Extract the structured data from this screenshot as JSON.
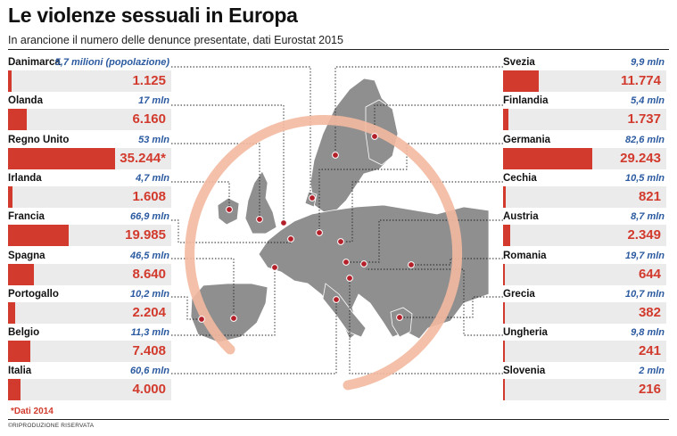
{
  "title": "Le violenze sessuali in Europa",
  "subtitle": "In arancione il numero delle denunce presentate, dati Eurostat 2015",
  "footnote": "*Dati 2014",
  "copyright": "©RIPRODUZIONE RISERVATA",
  "colors": {
    "bar": "#d23a2d",
    "population": "#2b5aa0",
    "map": "#8f8f8f",
    "ring": "#f3b9a0"
  },
  "chart_data": {
    "type": "bar",
    "max_value": 35244,
    "left": [
      {
        "country": "Danimarca",
        "population": "5,7 milioni (popolazione)",
        "value": 1125,
        "label": "1.125"
      },
      {
        "country": "Olanda",
        "population": "17 mln",
        "value": 6160,
        "label": "6.160"
      },
      {
        "country": "Regno Unito",
        "population": "53 mln",
        "value": 35244,
        "label": "35.244*"
      },
      {
        "country": "Irlanda",
        "population": "4,7 mln",
        "value": 1608,
        "label": "1.608"
      },
      {
        "country": "Francia",
        "population": "66,9 mln",
        "value": 19985,
        "label": "19.985"
      },
      {
        "country": "Spagna",
        "population": "46,5 mln",
        "value": 8640,
        "label": "8.640"
      },
      {
        "country": "Portogallo",
        "population": "10,2 mln",
        "value": 2204,
        "label": "2.204"
      },
      {
        "country": "Belgio",
        "population": "11,3 mln",
        "value": 7408,
        "label": "7.408"
      },
      {
        "country": "Italia",
        "population": "60,6 mln",
        "value": 4000,
        "label": "4.000"
      }
    ],
    "right": [
      {
        "country": "Svezia",
        "population": "9,9 mln",
        "value": 11774,
        "label": "11.774"
      },
      {
        "country": "Finlandia",
        "population": "5,4 mln",
        "value": 1737,
        "label": "1.737"
      },
      {
        "country": "Germania",
        "population": "82,6 mln",
        "value": 29243,
        "label": "29.243"
      },
      {
        "country": "Cechia",
        "population": "10,5 mln",
        "value": 821,
        "label": "821"
      },
      {
        "country": "Austria",
        "population": "8,7 mln",
        "value": 2349,
        "label": "2.349"
      },
      {
        "country": "Romania",
        "population": "19,7 mln",
        "value": 644,
        "label": "644"
      },
      {
        "country": "Grecia",
        "population": "10,7 mln",
        "value": 382,
        "label": "382"
      },
      {
        "country": "Ungheria",
        "population": "9,8 mln",
        "value": 241,
        "label": "241"
      },
      {
        "country": "Slovenia",
        "population": "2 mln",
        "value": 216,
        "label": "216"
      }
    ]
  }
}
